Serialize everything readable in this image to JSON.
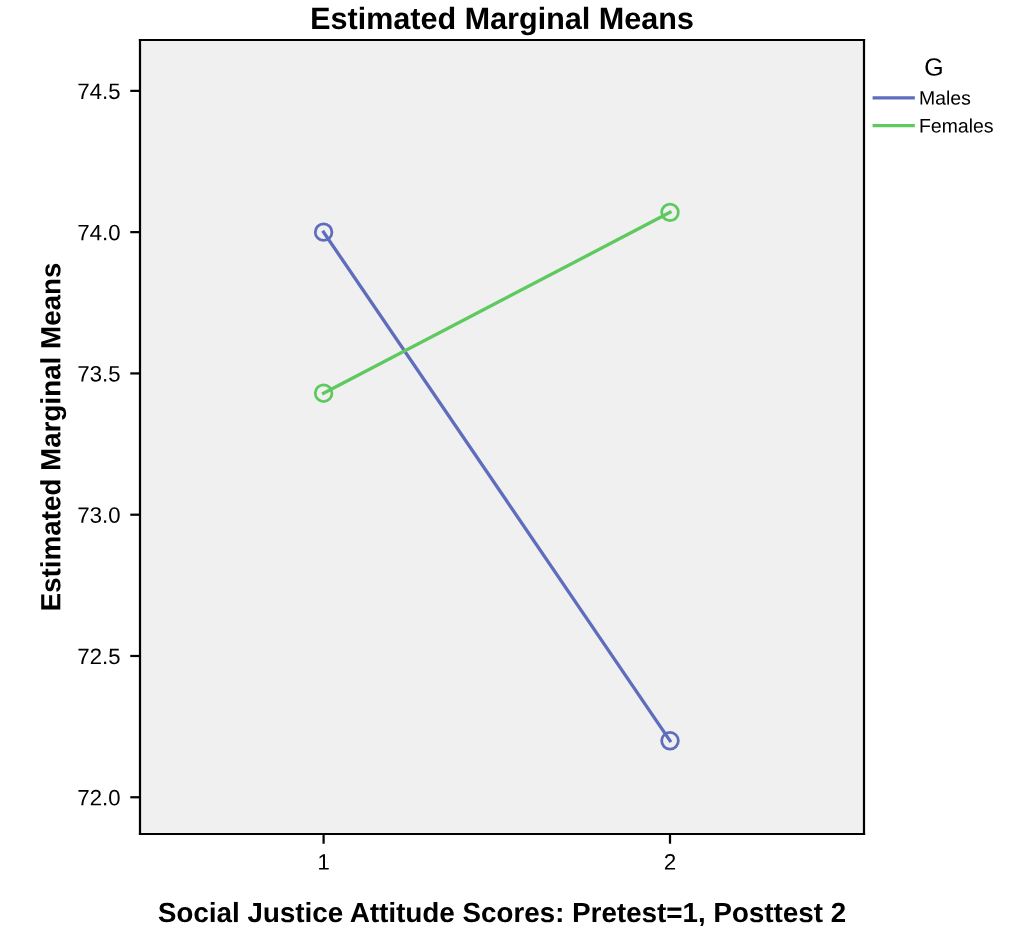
{
  "chart_data": {
    "type": "line",
    "title": "Estimated Marginal Means",
    "xlabel": "Social Justice Attitude Scores: Pretest=1, Posttest 2",
    "ylabel": "Estimated Marginal Means",
    "legend_title": "G",
    "x": [
      1,
      2
    ],
    "series": [
      {
        "name": "Males",
        "color": "#5f6dbd",
        "values": [
          74.0,
          72.2
        ]
      },
      {
        "name": "Females",
        "color": "#5ec95e",
        "values": [
          73.43,
          74.07
        ]
      }
    ],
    "xlim": [
      0.47,
      2.56
    ],
    "xticks": [
      1,
      2
    ],
    "ylim": [
      71.87,
      74.68
    ],
    "yticks": [
      {
        "value": 72,
        "label": "72.0"
      },
      72.5,
      {
        "value": 73,
        "label": "73.0"
      },
      73.5,
      {
        "value": 74,
        "label": "74.0"
      },
      74.5
    ],
    "marker": "circle",
    "line_style": "solid",
    "grid": false,
    "legend": "top right"
  }
}
